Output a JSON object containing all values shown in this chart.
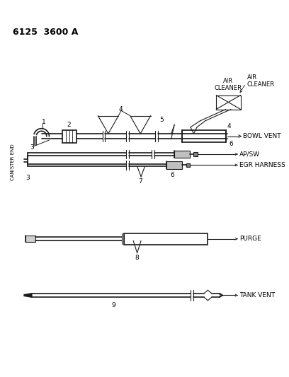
{
  "title": "6125  3600 A",
  "bg_color": "#ffffff",
  "line_color": "#1a1a1a",
  "fig_width": 4.08,
  "fig_height": 5.33,
  "dpi": 100,
  "labels": {
    "air_cleaner": "AIR\nCLEANER",
    "bowl_vent": "BOWL VENT",
    "ap_sw": "AP/SW",
    "egr_harness": "EGR HARNESS",
    "purge": "PURGE",
    "tank_vent": "TANK VENT",
    "canister_end": "CANISTER END",
    "num1": "1",
    "num2": "2",
    "num3a": "3",
    "num3b": "3",
    "num4a": "4",
    "num4b": "4",
    "num5": "5",
    "num6": "6",
    "num7": "7",
    "num8": "8",
    "num9": "9"
  }
}
